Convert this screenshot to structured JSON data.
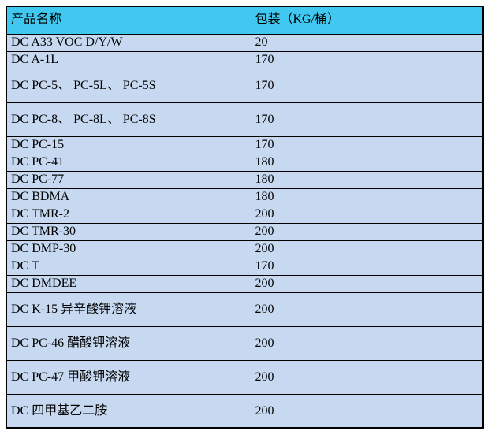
{
  "colors": {
    "header_bg": "#40C8F0",
    "row_bg": "#C6D9F1",
    "border": "#000000",
    "text": "#000000",
    "page_bg": "#FFFFFF"
  },
  "table": {
    "header": {
      "product_name": "产品名称",
      "packing": "包装（KG/桶）"
    },
    "rows": [
      {
        "name": "DC A33 VOC D/Y/W",
        "packing": "20",
        "tall": false
      },
      {
        "name": "DC A-1L",
        "packing": "170",
        "tall": false
      },
      {
        "name": "DC PC-5、 PC-5L、 PC-5S",
        "packing": "170",
        "tall": true
      },
      {
        "name": "DC PC-8、 PC-8L、 PC-8S",
        "packing": "170",
        "tall": true
      },
      {
        "name": "DC PC-15",
        "packing": "170",
        "tall": false
      },
      {
        "name": "DC PC-41",
        "packing": "180",
        "tall": false
      },
      {
        "name": "DC PC-77",
        "packing": "180",
        "tall": false
      },
      {
        "name": "DC BDMA",
        "packing": "180",
        "tall": false
      },
      {
        "name": "DC TMR-2",
        "packing": "200",
        "tall": false
      },
      {
        "name": "DC TMR-30",
        "packing": "200",
        "tall": false
      },
      {
        "name": "DC DMP-30",
        "packing": "200",
        "tall": false
      },
      {
        "name": "DC T",
        "packing": "170",
        "tall": false
      },
      {
        "name": "DC DMDEE",
        "packing": "200",
        "tall": false
      },
      {
        "name": "DC K-15 异辛酸钾溶液",
        "packing": "200",
        "tall": true
      },
      {
        "name": "DC PC-46 醋酸钾溶液",
        "packing": "200",
        "tall": true
      },
      {
        "name": "DC PC-47 甲酸钾溶液",
        "packing": "200",
        "tall": true
      },
      {
        "name": "DC  四甲基乙二胺",
        "packing": "200",
        "tall": true
      }
    ]
  }
}
